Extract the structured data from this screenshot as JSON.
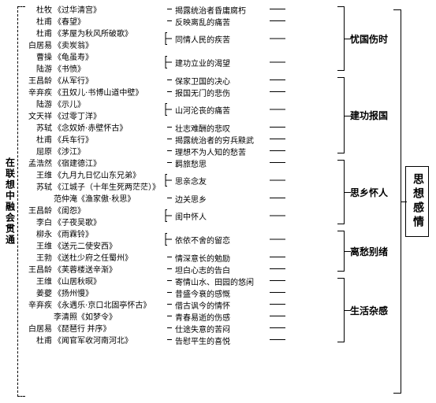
{
  "leftLabel": "在联想中融会贯通",
  "rightLabel": "思想感情",
  "groups": [
    {
      "label": "忧国伤时",
      "rows": [
        {
          "author": "杜牧",
          "title": "《过华清宫》",
          "meaning": "揭露统治者昏庸腐朽",
          "mSpan": 1
        },
        {
          "author": "杜甫",
          "title": "《春望》",
          "meaning": "反映离乱的痛苦",
          "mSpan": 1
        },
        {
          "author": "杜甫",
          "title": "《茅屋为秋风所破歌》",
          "meaning": "同情人民的疾苦",
          "mSpan": 2
        },
        {
          "author": "白居易",
          "title": "《卖炭翁》",
          "meaning": "",
          "mSpan": 0
        },
        {
          "author": "曹操",
          "title": "《龟虽寿》",
          "meaning": "建功立业的渴望",
          "mSpan": 2
        },
        {
          "author": "陆游",
          "title": "《书愤》",
          "meaning": "",
          "mSpan": 0
        }
      ]
    },
    {
      "label": "建功报国",
      "rows": [
        {
          "author": "王昌龄",
          "title": "《从军行》",
          "meaning": "保家卫国的决心",
          "mSpan": 1
        },
        {
          "author": "辛弃疾",
          "title": "《丑奴儿·书博山道中壁》",
          "meaning": "报国无门的悲伤",
          "mSpan": 1
        },
        {
          "author": "陆游",
          "title": "《示儿》",
          "meaning": "山河沦丧的痛苦",
          "mSpan": 2
        },
        {
          "author": "文天祥",
          "title": "《过零丁洋》",
          "meaning": "",
          "mSpan": 0
        },
        {
          "author": "苏轼",
          "title": "《念奴娇·赤壁怀古》",
          "meaning": "壮志难酬的悲叹",
          "mSpan": 1
        },
        {
          "author": "杜甫",
          "title": "《兵车行》",
          "meaning": "揭露统治者的穷兵黩武",
          "mSpan": 1
        },
        {
          "author": "屈原",
          "title": "《涉江》",
          "meaning": "理想不为人知的愁苦",
          "mSpan": 1
        }
      ]
    },
    {
      "label": "思乡怀人",
      "rows": [
        {
          "author": "孟浩然",
          "title": "《宿建德江》",
          "meaning": "羁旅愁思",
          "mSpan": 1
        },
        {
          "author": "王维",
          "title": "《九月九日忆山东兄弟》",
          "meaning": "思亲念友",
          "mSpan": 2
        },
        {
          "author": "苏轼",
          "title": "《江城子（十年生死两茫茫）》",
          "meaning": "",
          "mSpan": 0
        },
        {
          "author": "",
          "title": "范仲淹《渔家傲·秋思》",
          "meaning": "边关思乡",
          "mSpan": 1
        },
        {
          "author": "王昌龄",
          "title": "《闺怨》",
          "meaning": "闺中怀人",
          "mSpan": 2
        },
        {
          "author": "李白",
          "title": "《子夜吴歌》",
          "meaning": "",
          "mSpan": 0
        }
      ]
    },
    {
      "label": "离愁别绪",
      "rows": [
        {
          "author": "柳永",
          "title": "《雨霖铃》",
          "meaning": "依依不舍的留恋",
          "mSpan": 2
        },
        {
          "author": "王维",
          "title": "《送元二使安西》",
          "meaning": "",
          "mSpan": 0
        },
        {
          "author": "王勃",
          "title": "《送杜少府之任蜀州》",
          "meaning": "情深意长的勉励",
          "mSpan": 1
        },
        {
          "author": "王昌龄",
          "title": "《芙蓉楼送辛渐》",
          "meaning": "坦白心志的告白",
          "mSpan": 1
        }
      ]
    },
    {
      "label": "生活杂感",
      "rows": [
        {
          "author": "王维",
          "title": "《山居秋暝》",
          "meaning": "寄情山水、田园的悠闲",
          "mSpan": 1
        },
        {
          "author": "姜夔",
          "title": "《扬州慢》",
          "meaning": "昔盛今衰的感慨",
          "mSpan": 1
        },
        {
          "author": "辛弃疾",
          "title": "《永遇乐·京口北固亭怀古》",
          "meaning": "借古讽今的情怀",
          "mSpan": 1
        },
        {
          "author": "",
          "title": "李清照《如梦令》",
          "meaning": "青春易逝的伤感",
          "mSpan": 1
        },
        {
          "author": "白居易",
          "title": "《琵琶行 并序》",
          "meaning": "仕途失意的苦闷",
          "mSpan": 1
        },
        {
          "author": "杜甫",
          "title": "《闻官军收河南河北》",
          "meaning": "告慰平生的喜悦",
          "mSpan": 1
        }
      ]
    }
  ]
}
